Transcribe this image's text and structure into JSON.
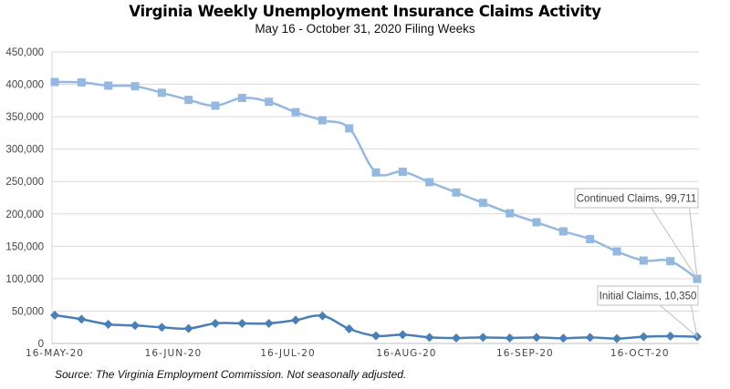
{
  "chart_data": {
    "type": "line",
    "title": "Virginia Weekly Unemployment Insurance Claims Activity",
    "subtitle": "May 16 - October 31, 2020 Filing Weeks",
    "xlabel": "",
    "ylabel": "",
    "ylim": [
      0,
      450000
    ],
    "yticks": [
      0,
      50000,
      100000,
      150000,
      200000,
      250000,
      300000,
      350000,
      400000,
      450000
    ],
    "ytick_labels": [
      "0",
      "50,000",
      "100,000",
      "150,000",
      "200,000",
      "250,000",
      "300,000",
      "350,000",
      "400,000",
      "450,000"
    ],
    "x_weeks": 25,
    "xtick_labels": [
      {
        "label": "16-MAY-20",
        "week_index": 0
      },
      {
        "label": "16-JUN-20",
        "week_index": 4.43
      },
      {
        "label": "16-JUL-20",
        "week_index": 8.71
      },
      {
        "label": "16-AUG-20",
        "week_index": 13.14
      },
      {
        "label": "16-SEP-20",
        "week_index": 17.57
      },
      {
        "label": "16-OCT-20",
        "week_index": 21.86
      }
    ],
    "grid": true,
    "series": [
      {
        "name": "Continued Claims",
        "color": "#95b8e0",
        "marker": "square",
        "values": [
          403500,
          403000,
          398000,
          397000,
          387000,
          376000,
          367000,
          379000,
          373000,
          357000,
          344500,
          332000,
          264000,
          265000,
          249000,
          233000,
          217000,
          201000,
          187000,
          173000,
          161000,
          142000,
          128000,
          127000,
          99711
        ]
      },
      {
        "name": "Initial Claims",
        "color": "#4a7fb5",
        "marker": "diamond",
        "values": [
          43600,
          37500,
          29500,
          27700,
          24900,
          23000,
          31000,
          31000,
          31000,
          36000,
          42600,
          22500,
          11700,
          13600,
          9400,
          8400,
          9400,
          8400,
          9400,
          8000,
          9400,
          7500,
          10300,
          11200,
          10350
        ]
      }
    ],
    "annotations": [
      {
        "series": "Continued Claims",
        "text": "Continued Claims, 99,711"
      },
      {
        "series": "Initial Claims",
        "text": "Initial Claims, 10,350"
      }
    ]
  },
  "footer": {
    "source": "Source: The Virginia Employment Commission. Not seasonally adjusted."
  }
}
